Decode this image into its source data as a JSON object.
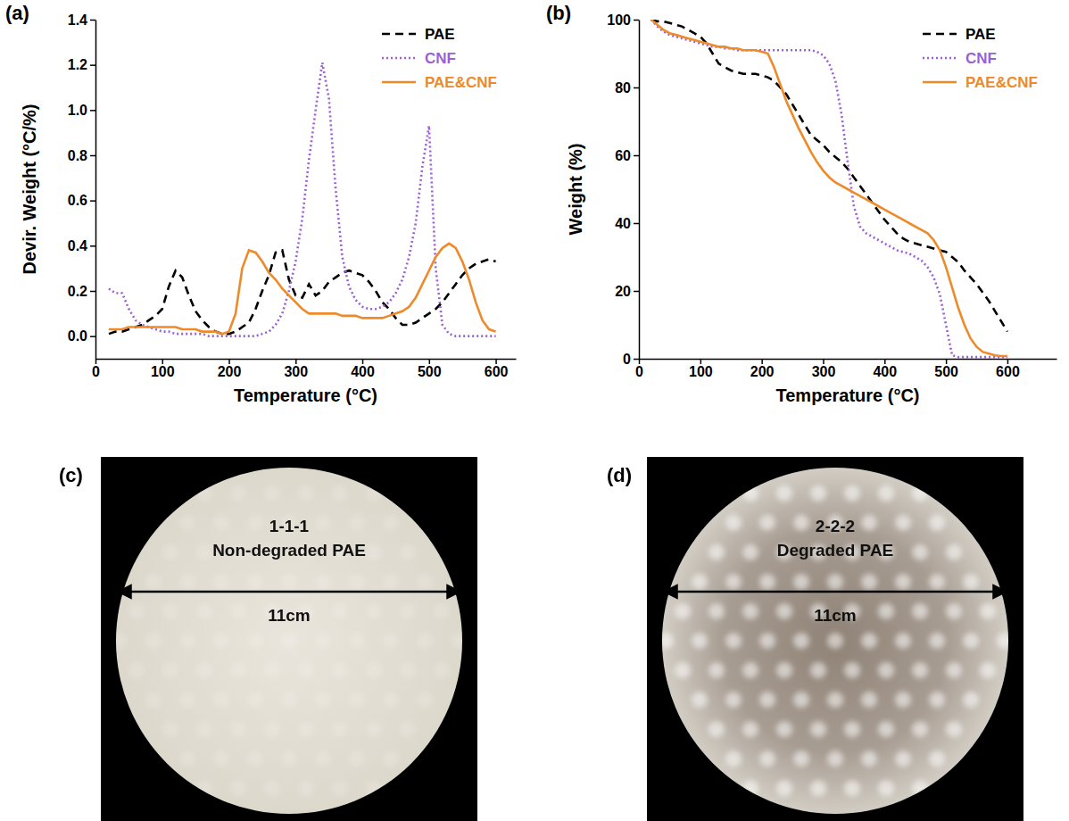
{
  "chart_data": [
    {
      "type": "line",
      "label": "(a)",
      "x_label": "Temperature (°C)",
      "y_label": "Devir. Weight (°C/%)",
      "x": [
        20,
        30,
        40,
        50,
        60,
        70,
        80,
        90,
        100,
        110,
        120,
        130,
        140,
        150,
        160,
        170,
        180,
        190,
        200,
        210,
        220,
        230,
        240,
        250,
        260,
        270,
        280,
        290,
        300,
        310,
        320,
        330,
        340,
        350,
        360,
        370,
        380,
        390,
        400,
        410,
        420,
        430,
        440,
        450,
        460,
        470,
        480,
        490,
        500,
        510,
        520,
        530,
        540,
        550,
        560,
        570,
        580,
        590,
        600
      ],
      "xlim": [
        0,
        630
      ],
      "xticks": [
        0,
        100,
        200,
        300,
        400,
        500,
        600
      ],
      "ylim": [
        -0.1,
        1.4
      ],
      "yticks": [
        {
          "value": 0,
          "label": "0.0"
        },
        0.2,
        0.4,
        0.6,
        0.8,
        {
          "value": 1,
          "label": "1.0"
        },
        1.2,
        1.4
      ],
      "grid": false,
      "legend": "upper right",
      "series": [
        {
          "name": "PAE",
          "color": "#000000",
          "line_style": "dashed",
          "values": [
            0.01,
            0.02,
            0.02,
            0.03,
            0.04,
            0.05,
            0.07,
            0.09,
            0.12,
            0.22,
            0.29,
            0.26,
            0.18,
            0.11,
            0.07,
            0.04,
            0.02,
            0.01,
            0.01,
            0.02,
            0.04,
            0.06,
            0.12,
            0.2,
            0.27,
            0.37,
            0.38,
            0.25,
            0.18,
            0.17,
            0.23,
            0.18,
            0.2,
            0.24,
            0.26,
            0.28,
            0.29,
            0.28,
            0.27,
            0.24,
            0.2,
            0.15,
            0.12,
            0.08,
            0.05,
            0.05,
            0.06,
            0.08,
            0.1,
            0.12,
            0.15,
            0.19,
            0.23,
            0.27,
            0.3,
            0.32,
            0.33,
            0.34,
            0.33
          ]
        },
        {
          "name": "CNF",
          "color": "#9b5fd6",
          "line_style": "dotted",
          "values": [
            0.21,
            0.19,
            0.19,
            0.12,
            0.07,
            0.05,
            0.04,
            0.03,
            0.02,
            0.02,
            0.01,
            0.01,
            0.01,
            0.01,
            0.01,
            0,
            0,
            0,
            0,
            0,
            0,
            0,
            0,
            0.01,
            0.02,
            0.05,
            0.1,
            0.2,
            0.33,
            0.52,
            0.78,
            1.0,
            1.21,
            1.05,
            0.65,
            0.35,
            0.22,
            0.16,
            0.13,
            0.12,
            0.12,
            0.13,
            0.15,
            0.19,
            0.25,
            0.35,
            0.5,
            0.75,
            0.93,
            0.3,
            0.05,
            0.01,
            0,
            0,
            0,
            0,
            0,
            0,
            0
          ]
        },
        {
          "name": "PAE&CNF",
          "color": "#ee8a2a",
          "line_style": "solid",
          "values": [
            0.03,
            0.03,
            0.03,
            0.04,
            0.04,
            0.04,
            0.04,
            0.04,
            0.04,
            0.04,
            0.04,
            0.03,
            0.03,
            0.03,
            0.02,
            0.02,
            0.02,
            0.01,
            0.02,
            0.1,
            0.3,
            0.38,
            0.37,
            0.33,
            0.28,
            0.25,
            0.21,
            0.18,
            0.15,
            0.12,
            0.1,
            0.1,
            0.1,
            0.1,
            0.1,
            0.09,
            0.09,
            0.09,
            0.08,
            0.08,
            0.08,
            0.08,
            0.09,
            0.1,
            0.11,
            0.13,
            0.17,
            0.23,
            0.29,
            0.35,
            0.39,
            0.41,
            0.39,
            0.33,
            0.25,
            0.15,
            0.07,
            0.03,
            0.02
          ]
        }
      ]
    },
    {
      "type": "line",
      "label": "(b)",
      "x_label": "Temperature (°C)",
      "y_label": "Weight (%)",
      "x": [
        20,
        30,
        40,
        50,
        60,
        70,
        80,
        90,
        100,
        110,
        120,
        130,
        140,
        150,
        160,
        170,
        180,
        190,
        200,
        210,
        220,
        230,
        240,
        250,
        260,
        270,
        280,
        290,
        300,
        310,
        320,
        330,
        340,
        350,
        360,
        370,
        380,
        390,
        400,
        410,
        420,
        430,
        440,
        450,
        460,
        470,
        480,
        490,
        500,
        510,
        520,
        530,
        540,
        550,
        560,
        570,
        580,
        590,
        600
      ],
      "xlim": [
        0,
        680
      ],
      "xticks": [
        0,
        100,
        200,
        300,
        400,
        500,
        600
      ],
      "ylim": [
        0,
        100
      ],
      "yticks": [
        0,
        20,
        40,
        60,
        80,
        100
      ],
      "grid": false,
      "legend": "upper right",
      "series": [
        {
          "name": "PAE",
          "color": "#000000",
          "line_style": "dashed",
          "values": [
            100,
            99.5,
            99.5,
            99,
            98.5,
            98,
            97,
            96,
            95,
            93,
            90,
            87,
            86,
            85,
            84.5,
            84,
            84,
            84,
            83.5,
            83,
            82,
            80,
            78,
            75,
            72,
            69,
            66,
            64.5,
            63,
            61,
            59.5,
            58,
            56,
            53.5,
            51,
            48.5,
            46,
            43.5,
            41,
            39,
            37,
            35.5,
            34.5,
            34,
            33.5,
            33,
            32.5,
            32,
            31.5,
            30,
            28.5,
            26,
            24,
            22,
            19.5,
            17,
            14,
            11,
            8
          ]
        },
        {
          "name": "CNF",
          "color": "#9b5fd6",
          "line_style": "dotted",
          "values": [
            100,
            98,
            96.5,
            95.5,
            95,
            94.5,
            94,
            93.5,
            93,
            92.5,
            92,
            92,
            91.5,
            91.5,
            91,
            91,
            91,
            91,
            91,
            91,
            91,
            91,
            91,
            91,
            91,
            91,
            91,
            90.5,
            89.5,
            87,
            82,
            72,
            58,
            45,
            39,
            37,
            36,
            35,
            34,
            33,
            32,
            31.5,
            31,
            30,
            29,
            27,
            24,
            19,
            10,
            1,
            0.5,
            0.5,
            0.5,
            0.5,
            0.5,
            0.5,
            0.5,
            0.5,
            0.5
          ]
        },
        {
          "name": "PAE&CNF",
          "color": "#ee8a2a",
          "line_style": "solid",
          "values": [
            100,
            98.5,
            97,
            96,
            95.5,
            95,
            94.5,
            94,
            93.5,
            93,
            92.5,
            92,
            92,
            91.5,
            91.5,
            91,
            91,
            91,
            90.5,
            90,
            86,
            81,
            76,
            72,
            68,
            64.5,
            61,
            58,
            55.5,
            53.5,
            52,
            51,
            50,
            49,
            48,
            47,
            46,
            45,
            44,
            43,
            42,
            41,
            40,
            39,
            38,
            37,
            35,
            32,
            27,
            21,
            15,
            10,
            6,
            3.5,
            2,
            1.5,
            1,
            0.8,
            0.8
          ]
        }
      ]
    }
  ],
  "photos": [
    {
      "label": "(c)",
      "sample": "1-1-1",
      "caption": "Non-degraded PAE",
      "scale": "11cm"
    },
    {
      "label": "(d)",
      "sample": "2-2-2",
      "caption": "Degraded PAE",
      "scale": "11cm"
    }
  ]
}
